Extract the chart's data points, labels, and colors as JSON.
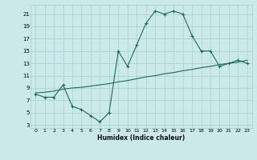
{
  "xlabel": "Humidex (Indice chaleur)",
  "background_color": "#cce9e9",
  "grid_color": "#aad4d4",
  "line_color": "#1a6b5a",
  "x_min": 0,
  "x_max": 23,
  "y_min": 3,
  "y_max": 21,
  "y_ticks": [
    3,
    5,
    7,
    9,
    11,
    13,
    15,
    17,
    19,
    21
  ],
  "x_ticks": [
    0,
    1,
    2,
    3,
    4,
    5,
    6,
    7,
    8,
    9,
    10,
    11,
    12,
    13,
    14,
    15,
    16,
    17,
    18,
    19,
    20,
    21,
    22,
    23
  ],
  "line1_x": [
    0,
    1,
    2,
    3,
    4,
    5,
    6,
    7,
    8,
    9,
    10,
    11,
    12,
    13,
    14,
    15,
    16,
    17,
    18,
    19,
    20,
    21,
    22,
    23
  ],
  "line1_y": [
    8,
    7.5,
    7.5,
    9.5,
    6,
    5.5,
    4.5,
    3.5,
    5,
    15,
    12.5,
    16,
    19.5,
    21.5,
    21,
    21.5,
    21,
    17.5,
    15,
    15,
    12.5,
    13,
    13.5,
    13
  ],
  "line2_x": [
    0,
    1,
    2,
    3,
    4,
    5,
    6,
    7,
    8,
    9,
    10,
    11,
    12,
    13,
    14,
    15,
    16,
    17,
    18,
    19,
    20,
    21,
    22,
    23
  ],
  "line2_y": [
    8.2,
    8.3,
    8.5,
    8.8,
    9.0,
    9.1,
    9.3,
    9.5,
    9.7,
    10.0,
    10.2,
    10.5,
    10.8,
    11.0,
    11.3,
    11.5,
    11.8,
    12.0,
    12.3,
    12.5,
    12.8,
    13.0,
    13.2,
    13.5
  ]
}
